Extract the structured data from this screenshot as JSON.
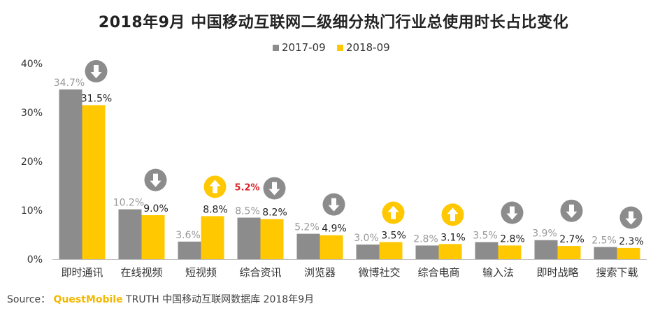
{
  "title": "2018年9月 中国移动互联网二级细分热门行业总使用时长占比变化",
  "source": {
    "prefix": "Source：",
    "brand": "QuestMobile",
    "rest": " TRUTH 中国移动互联网数据库 2018年9月"
  },
  "colors": {
    "series_2017": "#8c8c8c",
    "series_2018": "#ffc800",
    "arrow_down": "#8c8c8c",
    "arrow_up": "#ffc800",
    "highlight_label": "#d8232a"
  },
  "chart_data": {
    "type": "bar",
    "categories": [
      "即时通讯",
      "在线视频",
      "短视频",
      "综合资讯",
      "浏览器",
      "微博社交",
      "综合电商",
      "输入法",
      "即时战略",
      "搜索下载"
    ],
    "series": [
      {
        "name": "2017-09",
        "values": [
          34.7,
          10.2,
          3.6,
          8.5,
          5.2,
          3.0,
          2.8,
          3.5,
          3.9,
          2.5
        ]
      },
      {
        "name": "2018-09",
        "values": [
          31.5,
          9.0,
          8.8,
          8.2,
          4.9,
          3.5,
          3.1,
          2.8,
          2.7,
          2.3
        ]
      }
    ],
    "value_labels": {
      "2017-09": [
        "34.7%",
        "10.2%",
        "3.6%",
        "8.5%",
        "5.2%",
        "3.0%",
        "2.8%",
        "3.5%",
        "3.9%",
        "2.5%"
      ],
      "2018-09": [
        "31.5%",
        "9.0%",
        "8.8%",
        "8.2%",
        "4.9%",
        "3.5%",
        "3.1%",
        "2.8%",
        "2.7%",
        "2.3%"
      ]
    },
    "trend": [
      "down",
      "down",
      "up",
      "down",
      "down",
      "up",
      "up",
      "down",
      "down",
      "down"
    ],
    "annotations": [
      {
        "category": "短视频",
        "text": "5.2%"
      }
    ],
    "ylim": [
      0,
      40
    ],
    "yticks": [
      0,
      10,
      20,
      30,
      40
    ],
    "ytick_labels": [
      "0%",
      "10%",
      "20%",
      "30%",
      "40%"
    ],
    "legend_position": "top-center",
    "grid": false
  }
}
